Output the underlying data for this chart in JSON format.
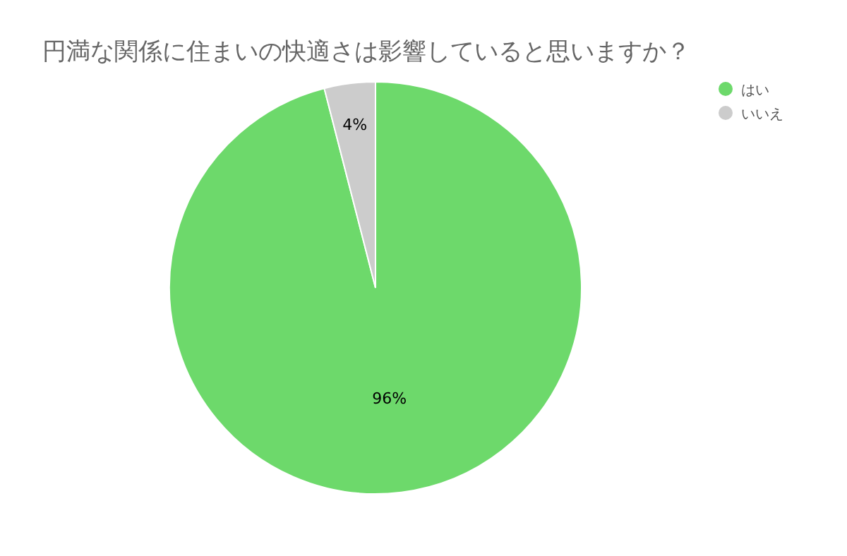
{
  "chart_data": {
    "type": "pie",
    "title": "円満な関係に住まいの快適さは影響していると思いますか？",
    "categories": [
      "はい",
      "いいえ"
    ],
    "values": [
      96,
      4
    ],
    "colors": [
      "#6dd96b",
      "#cccccc"
    ],
    "value_labels": [
      "96%",
      "4%"
    ],
    "legend": "top right"
  }
}
